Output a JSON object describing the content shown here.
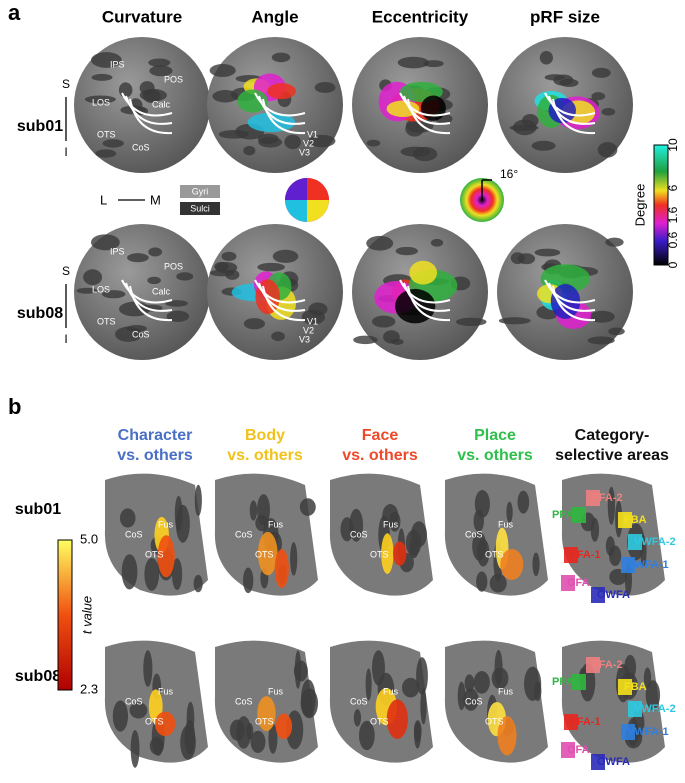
{
  "panel_a": {
    "label": "a",
    "columns": [
      "Curvature",
      "Angle",
      "Eccentricity",
      "pRF size"
    ],
    "rows": [
      "sub01",
      "sub08"
    ],
    "directions": {
      "superior": "S",
      "inferior": "I",
      "lateral": "L",
      "medial": "M"
    },
    "legend": {
      "gyri": "Gyri",
      "sulci": "Sulci"
    },
    "landmarks": [
      "IPS",
      "POS",
      "LOS",
      "Calc",
      "OTS",
      "CoS"
    ],
    "visual_areas": [
      "V1",
      "V2",
      "V3"
    ],
    "eccentricity_max": "16°",
    "colorbar": {
      "label": "Degree",
      "ticks": [
        "10",
        "6",
        "1.6",
        "0.6",
        "0"
      ]
    }
  },
  "panel_b": {
    "label": "b",
    "columns": [
      {
        "line1": "Character",
        "line2": "vs. others",
        "color": "#4a70c6"
      },
      {
        "line1": "Body",
        "line2": "vs. others",
        "color": "#f2c21b"
      },
      {
        "line1": "Face",
        "line2": "vs. others",
        "color": "#ee4a2a"
      },
      {
        "line1": "Place",
        "line2": "vs. others",
        "color": "#2fbf4a"
      },
      {
        "line1": "Category-",
        "line2": "selective areas",
        "color": "#111111"
      }
    ],
    "rows": [
      "sub01",
      "sub08"
    ],
    "landmarks": [
      "CoS",
      "Fus",
      "OTS"
    ],
    "areas": [
      {
        "label": "PPA",
        "color": "#2db83d"
      },
      {
        "label": "FFA-2",
        "color": "#f08080"
      },
      {
        "label": "FBA",
        "color": "#f5e11a"
      },
      {
        "label": "FFA-1",
        "color": "#e8261e"
      },
      {
        "label": "VWFA-2",
        "color": "#2ec9e0"
      },
      {
        "label": "VWFA-1",
        "color": "#2e7fe0"
      },
      {
        "label": "OFA",
        "color": "#e04fb0"
      },
      {
        "label": "OWFA",
        "color": "#2a2ab8"
      }
    ],
    "colorbar": {
      "label": "t value",
      "ticks": [
        "5.0",
        "2.3"
      ]
    }
  }
}
